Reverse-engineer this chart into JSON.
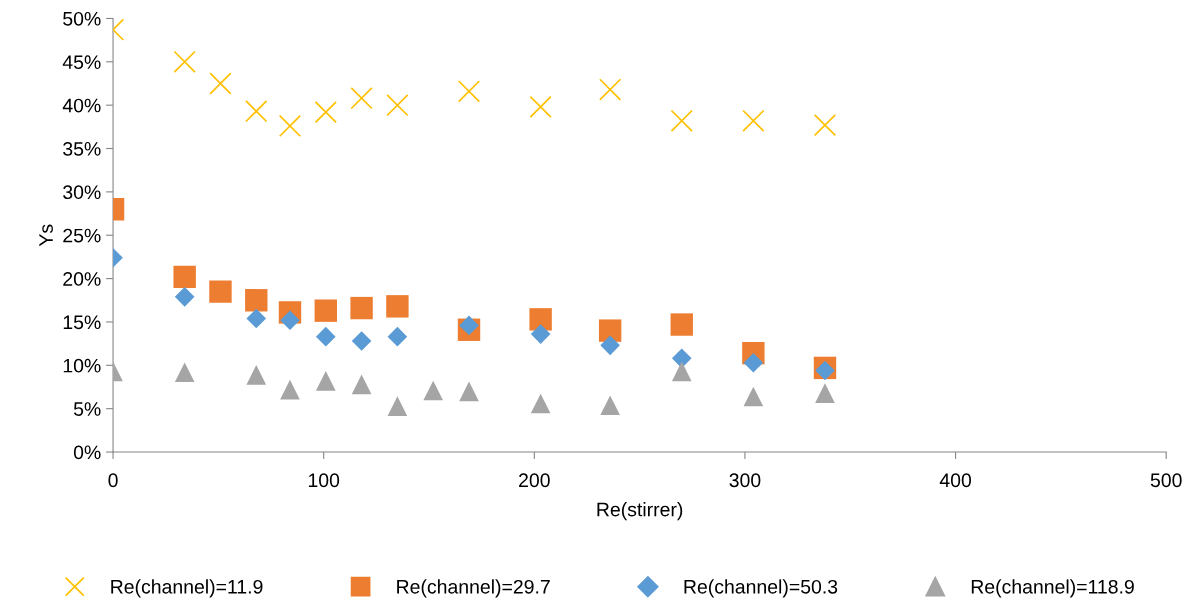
{
  "chart_data": {
    "type": "scatter",
    "xlabel": "Re(stirrer)",
    "ylabel": "Ys",
    "xlim": [
      0,
      500
    ],
    "xticks": [
      0,
      100,
      200,
      300,
      400,
      500
    ],
    "ylim": [
      0,
      50
    ],
    "yticks": [
      {
        "value": 0,
        "label": "0%"
      },
      {
        "value": 5,
        "label": "5%"
      },
      {
        "value": 10,
        "label": "10%"
      },
      {
        "value": 15,
        "label": "15%"
      },
      {
        "value": 20,
        "label": "20%"
      },
      {
        "value": 25,
        "label": "25%"
      },
      {
        "value": 30,
        "label": "30%"
      },
      {
        "value": 35,
        "label": "35%"
      },
      {
        "value": 40,
        "label": "40%"
      },
      {
        "value": 45,
        "label": "45%"
      },
      {
        "value": 50,
        "label": "50%"
      }
    ],
    "grid": false,
    "legend": "bottom",
    "series": [
      {
        "name": "Re(channel)=11.9",
        "color": "#ffc000",
        "marker": "cross",
        "x": [
          0,
          34,
          51,
          68,
          84,
          101,
          118,
          135,
          169,
          203,
          236,
          270,
          304,
          338
        ],
        "values": [
          48.7,
          45,
          42.5,
          39.3,
          37.6,
          39.2,
          40.8,
          40,
          41.6,
          39.8,
          41.8,
          38.2,
          38.2,
          37.7
        ]
      },
      {
        "name": "Re(channel)=29.7",
        "color": "#ed7d31",
        "marker": "square",
        "x": [
          0,
          34,
          51,
          68,
          84,
          101,
          118,
          135,
          169,
          203,
          236,
          270,
          304,
          338
        ],
        "values": [
          28,
          20.2,
          18.5,
          17.5,
          16.1,
          16.3,
          16.6,
          16.8,
          14.1,
          15.3,
          14,
          14.7,
          11.4,
          9.7
        ]
      },
      {
        "name": "Re(channel)=50.3",
        "color": "#5b9bd5",
        "marker": "diamond",
        "x": [
          0,
          34,
          68,
          84,
          101,
          118,
          135,
          169,
          203,
          236,
          270,
          304,
          338
        ],
        "values": [
          22.4,
          17.9,
          15.4,
          15.2,
          13.3,
          12.8,
          13.3,
          14.6,
          13.6,
          12.3,
          10.8,
          10.3,
          9.4
        ]
      },
      {
        "name": "Re(channel)=118.9",
        "color": "#a5a5a5",
        "marker": "triangle",
        "x": [
          0,
          34,
          68,
          84,
          101,
          118,
          135,
          152,
          169,
          203,
          236,
          270,
          304,
          338
        ],
        "values": [
          9.3,
          9.2,
          8.9,
          7.2,
          8.2,
          7.8,
          5.3,
          7.1,
          7,
          5.6,
          5.4,
          9.3,
          6.4,
          6.8
        ]
      }
    ]
  }
}
